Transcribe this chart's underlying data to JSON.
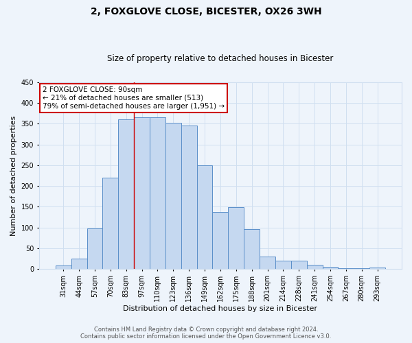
{
  "title": "2, FOXGLOVE CLOSE, BICESTER, OX26 3WH",
  "subtitle": "Size of property relative to detached houses in Bicester",
  "xlabel": "Distribution of detached houses by size in Bicester",
  "ylabel": "Number of detached properties",
  "footer_line1": "Contains HM Land Registry data © Crown copyright and database right 2024.",
  "footer_line2": "Contains public sector information licensed under the Open Government Licence v3.0.",
  "bar_labels": [
    "31sqm",
    "44sqm",
    "57sqm",
    "70sqm",
    "83sqm",
    "97sqm",
    "110sqm",
    "123sqm",
    "136sqm",
    "149sqm",
    "162sqm",
    "175sqm",
    "188sqm",
    "201sqm",
    "214sqm",
    "228sqm",
    "241sqm",
    "254sqm",
    "267sqm",
    "280sqm",
    "293sqm"
  ],
  "bar_values": [
    9,
    25,
    98,
    220,
    360,
    365,
    365,
    352,
    345,
    250,
    138,
    149,
    96,
    30,
    20,
    20,
    10,
    5,
    3,
    2,
    4
  ],
  "bar_color": "#c5d8f0",
  "bar_edge_color": "#5b8fc9",
  "grid_color": "#d0dff0",
  "bg_color": "#eef4fb",
  "annotation_line1": "2 FOXGLOVE CLOSE: 90sqm",
  "annotation_line2": "← 21% of detached houses are smaller (513)",
  "annotation_line3": "79% of semi-detached houses are larger (1,951) →",
  "annotation_box_color": "#ffffff",
  "annotation_box_edge_color": "#cc0000",
  "vline_color": "#cc0000",
  "vline_index": 4.5,
  "ylim": [
    0,
    450
  ],
  "yticks": [
    0,
    50,
    100,
    150,
    200,
    250,
    300,
    350,
    400,
    450
  ],
  "title_fontsize": 10,
  "subtitle_fontsize": 8.5,
  "ylabel_fontsize": 8,
  "xlabel_fontsize": 8,
  "tick_fontsize": 7,
  "footer_fontsize": 6,
  "ann_fontsize": 7.5
}
